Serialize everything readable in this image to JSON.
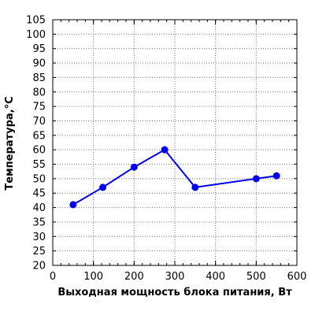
{
  "chart_data": {
    "type": "line",
    "title": "",
    "xlabel": "Выходная мощность блока питания, Вт",
    "ylabel": "Температура,°C",
    "xlim": [
      0,
      600
    ],
    "ylim": [
      20,
      105
    ],
    "xticks": [
      0,
      100,
      200,
      300,
      400,
      500,
      600
    ],
    "yticks": [
      20,
      25,
      30,
      35,
      40,
      45,
      50,
      55,
      60,
      65,
      70,
      75,
      80,
      85,
      90,
      95,
      100,
      105
    ],
    "x_minor_step": 20,
    "grid": true,
    "grid_style": "dotted",
    "legend": "none",
    "series": [
      {
        "color": "#0000ee",
        "marker": "circle",
        "x": [
          50,
          123,
          200,
          275,
          350,
          500,
          550
        ],
        "y": [
          41,
          47,
          54,
          60,
          47,
          50,
          51
        ]
      }
    ]
  }
}
